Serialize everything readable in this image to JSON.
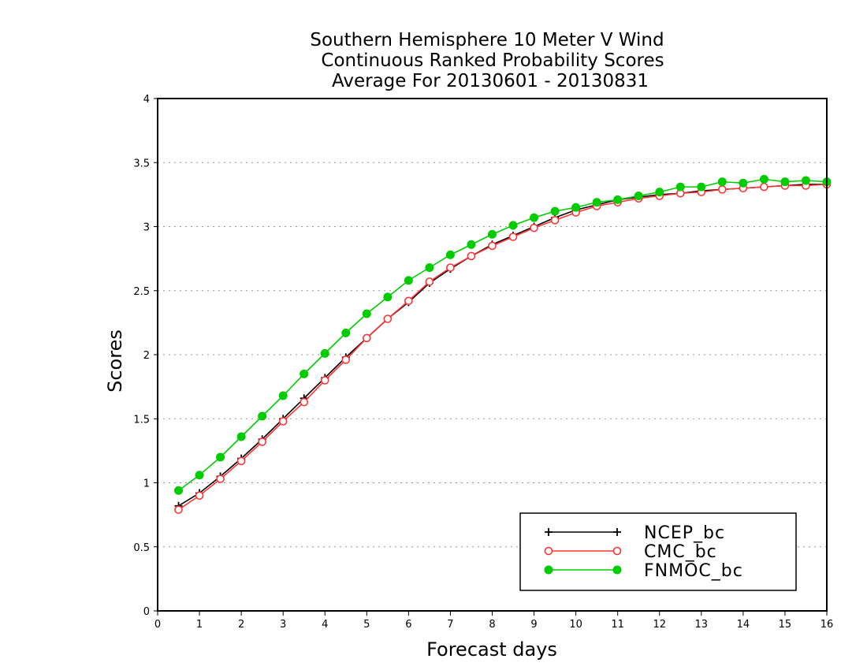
{
  "chart_data": {
    "type": "line",
    "title_lines": [
      "Southern Hemisphere 10 Meter V Wind",
      "Continuous Ranked Probability Scores",
      "Average For 20130601 - 20130831"
    ],
    "xlabel": "Forecast days",
    "ylabel": "Scores",
    "xlim": [
      0,
      16
    ],
    "ylim": [
      0,
      4
    ],
    "x_ticks": [
      "0",
      "1",
      "2",
      "3",
      "4",
      "5",
      "6",
      "7",
      "8",
      "9",
      "10",
      "11",
      "12",
      "13",
      "14",
      "15",
      "16"
    ],
    "y_ticks": [
      "0",
      "0.5",
      "1",
      "1.5",
      "2",
      "2.5",
      "3",
      "3.5",
      "4"
    ],
    "grid": "horizontal dotted",
    "legend_position": "bottom-right",
    "x": [
      0.5,
      1,
      1.5,
      2,
      2.5,
      3,
      3.5,
      4,
      4.5,
      5,
      5.5,
      6,
      6.5,
      7,
      7.5,
      8,
      8.5,
      9,
      9.5,
      10,
      10.5,
      11,
      11.5,
      12,
      12.5,
      13,
      13.5,
      14,
      14.5,
      15,
      15.5,
      16
    ],
    "series": [
      {
        "name": "NCEP_bc",
        "color": "#000000",
        "marker": "plus",
        "values": [
          0.82,
          0.92,
          1.05,
          1.19,
          1.34,
          1.5,
          1.66,
          1.82,
          1.98,
          2.13,
          2.28,
          2.41,
          2.56,
          2.67,
          2.77,
          2.86,
          2.93,
          3.0,
          3.07,
          3.13,
          3.17,
          3.21,
          3.23,
          3.25,
          3.26,
          3.28,
          3.29,
          3.3,
          3.31,
          3.32,
          3.33,
          3.33
        ]
      },
      {
        "name": "CMC_bc",
        "color": "#ff3333",
        "marker": "open-circle",
        "values": [
          0.79,
          0.9,
          1.03,
          1.17,
          1.32,
          1.48,
          1.63,
          1.8,
          1.96,
          2.13,
          2.28,
          2.42,
          2.57,
          2.68,
          2.77,
          2.85,
          2.92,
          2.99,
          3.05,
          3.11,
          3.16,
          3.19,
          3.22,
          3.24,
          3.26,
          3.27,
          3.29,
          3.3,
          3.31,
          3.32,
          3.32,
          3.33
        ]
      },
      {
        "name": "FNMOC_bc",
        "color": "#00cc00",
        "marker": "filled-circle",
        "values": [
          0.94,
          1.06,
          1.2,
          1.36,
          1.52,
          1.68,
          1.85,
          2.01,
          2.17,
          2.32,
          2.45,
          2.58,
          2.68,
          2.78,
          2.86,
          2.94,
          3.01,
          3.07,
          3.12,
          3.15,
          3.19,
          3.21,
          3.24,
          3.27,
          3.31,
          3.31,
          3.35,
          3.34,
          3.37,
          3.35,
          3.36,
          3.35
        ]
      }
    ]
  }
}
